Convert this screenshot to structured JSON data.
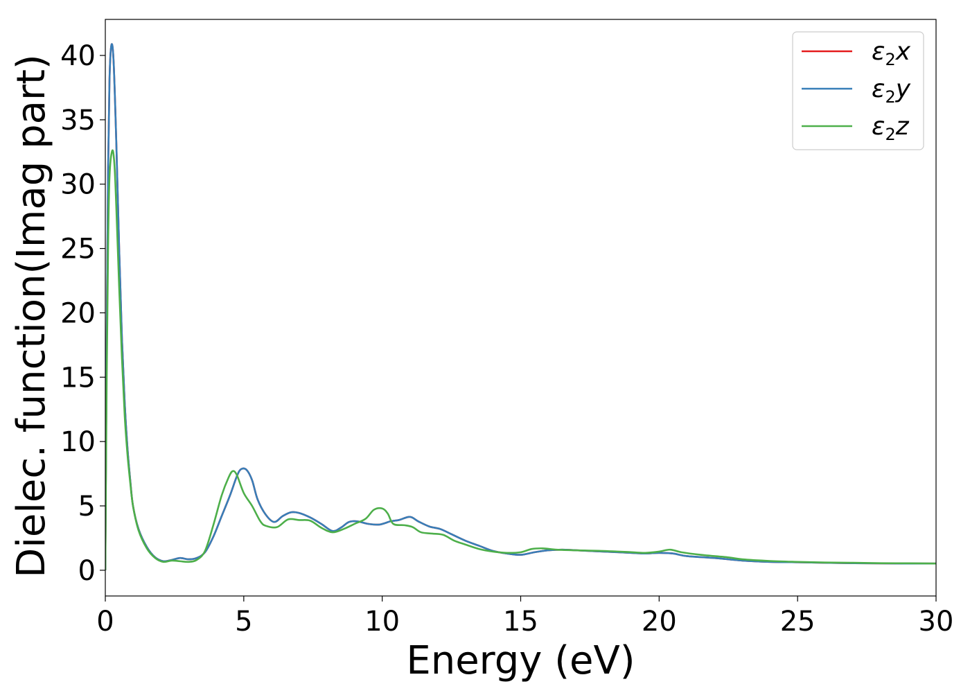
{
  "chart_data": {
    "type": "line",
    "xlabel": "Energy (eV)",
    "ylabel": "Dielec. function(Imag part)",
    "xlim": [
      0,
      30
    ],
    "ylim": [
      -2,
      42.8
    ],
    "xticks": [
      0,
      5,
      10,
      15,
      20,
      25,
      30
    ],
    "yticks": [
      0,
      5,
      10,
      15,
      20,
      25,
      30,
      35,
      40
    ],
    "grid": false,
    "legend_position": "top-right",
    "series": [
      {
        "name": "ε₂x",
        "legend_base": "ε",
        "legend_sub": "2",
        "legend_var": "x",
        "color": "#e41a1c",
        "points": [
          [
            0,
            0
          ],
          [
            0.05,
            18
          ],
          [
            0.1,
            31
          ],
          [
            0.15,
            38
          ],
          [
            0.22,
            40.8
          ],
          [
            0.3,
            39.5
          ],
          [
            0.4,
            33
          ],
          [
            0.5,
            25
          ],
          [
            0.6,
            18
          ],
          [
            0.7,
            13
          ],
          [
            0.8,
            9.5
          ],
          [
            0.9,
            7
          ],
          [
            1.0,
            5
          ],
          [
            1.2,
            3.2
          ],
          [
            1.5,
            1.8
          ],
          [
            1.8,
            1.0
          ],
          [
            2.1,
            0.7
          ],
          [
            2.4,
            0.8
          ],
          [
            2.7,
            0.95
          ],
          [
            3.0,
            0.85
          ],
          [
            3.3,
            0.95
          ],
          [
            3.6,
            1.4
          ],
          [
            3.9,
            2.6
          ],
          [
            4.2,
            4.2
          ],
          [
            4.5,
            5.8
          ],
          [
            4.75,
            7.3
          ],
          [
            4.9,
            7.85
          ],
          [
            5.1,
            7.8
          ],
          [
            5.3,
            7.0
          ],
          [
            5.5,
            5.5
          ],
          [
            5.8,
            4.3
          ],
          [
            6.1,
            3.75
          ],
          [
            6.4,
            4.2
          ],
          [
            6.7,
            4.5
          ],
          [
            7.0,
            4.45
          ],
          [
            7.4,
            4.1
          ],
          [
            7.8,
            3.6
          ],
          [
            8.2,
            3.05
          ],
          [
            8.5,
            3.3
          ],
          [
            8.8,
            3.75
          ],
          [
            9.1,
            3.8
          ],
          [
            9.5,
            3.6
          ],
          [
            9.9,
            3.55
          ],
          [
            10.3,
            3.8
          ],
          [
            10.6,
            3.9
          ],
          [
            11.0,
            4.15
          ],
          [
            11.3,
            3.8
          ],
          [
            11.7,
            3.4
          ],
          [
            12.1,
            3.2
          ],
          [
            12.5,
            2.8
          ],
          [
            13.0,
            2.3
          ],
          [
            13.5,
            1.9
          ],
          [
            14.0,
            1.5
          ],
          [
            14.5,
            1.3
          ],
          [
            15.0,
            1.2
          ],
          [
            15.5,
            1.4
          ],
          [
            16.0,
            1.55
          ],
          [
            16.5,
            1.6
          ],
          [
            17.0,
            1.55
          ],
          [
            18.0,
            1.45
          ],
          [
            19.0,
            1.35
          ],
          [
            19.5,
            1.3
          ],
          [
            20.0,
            1.35
          ],
          [
            20.5,
            1.3
          ],
          [
            21.0,
            1.1
          ],
          [
            22.0,
            0.95
          ],
          [
            23.0,
            0.75
          ],
          [
            24.0,
            0.65
          ],
          [
            25.0,
            0.62
          ],
          [
            26.0,
            0.58
          ],
          [
            27.0,
            0.55
          ],
          [
            28.0,
            0.53
          ],
          [
            29.0,
            0.52
          ],
          [
            30.0,
            0.52
          ]
        ]
      },
      {
        "name": "ε₂y",
        "legend_base": "ε",
        "legend_sub": "2",
        "legend_var": "y",
        "color": "#377eb8",
        "points": [
          [
            0,
            0
          ],
          [
            0.05,
            18
          ],
          [
            0.1,
            31
          ],
          [
            0.15,
            38
          ],
          [
            0.22,
            40.8
          ],
          [
            0.3,
            39.5
          ],
          [
            0.4,
            33
          ],
          [
            0.5,
            25
          ],
          [
            0.6,
            18
          ],
          [
            0.7,
            13
          ],
          [
            0.8,
            9.5
          ],
          [
            0.9,
            7
          ],
          [
            1.0,
            5
          ],
          [
            1.2,
            3.2
          ],
          [
            1.5,
            1.8
          ],
          [
            1.8,
            1.0
          ],
          [
            2.1,
            0.7
          ],
          [
            2.4,
            0.8
          ],
          [
            2.7,
            0.95
          ],
          [
            3.0,
            0.85
          ],
          [
            3.3,
            0.95
          ],
          [
            3.6,
            1.4
          ],
          [
            3.9,
            2.6
          ],
          [
            4.2,
            4.2
          ],
          [
            4.5,
            5.8
          ],
          [
            4.75,
            7.3
          ],
          [
            4.9,
            7.85
          ],
          [
            5.1,
            7.8
          ],
          [
            5.3,
            7.0
          ],
          [
            5.5,
            5.5
          ],
          [
            5.8,
            4.3
          ],
          [
            6.1,
            3.75
          ],
          [
            6.4,
            4.2
          ],
          [
            6.7,
            4.5
          ],
          [
            7.0,
            4.45
          ],
          [
            7.4,
            4.1
          ],
          [
            7.8,
            3.6
          ],
          [
            8.2,
            3.05
          ],
          [
            8.5,
            3.3
          ],
          [
            8.8,
            3.75
          ],
          [
            9.1,
            3.8
          ],
          [
            9.5,
            3.6
          ],
          [
            9.9,
            3.55
          ],
          [
            10.3,
            3.8
          ],
          [
            10.6,
            3.9
          ],
          [
            11.0,
            4.15
          ],
          [
            11.3,
            3.8
          ],
          [
            11.7,
            3.4
          ],
          [
            12.1,
            3.2
          ],
          [
            12.5,
            2.8
          ],
          [
            13.0,
            2.3
          ],
          [
            13.5,
            1.9
          ],
          [
            14.0,
            1.5
          ],
          [
            14.5,
            1.3
          ],
          [
            15.0,
            1.2
          ],
          [
            15.5,
            1.4
          ],
          [
            16.0,
            1.55
          ],
          [
            16.5,
            1.6
          ],
          [
            17.0,
            1.55
          ],
          [
            18.0,
            1.45
          ],
          [
            19.0,
            1.35
          ],
          [
            19.5,
            1.3
          ],
          [
            20.0,
            1.35
          ],
          [
            20.5,
            1.3
          ],
          [
            21.0,
            1.1
          ],
          [
            22.0,
            0.95
          ],
          [
            23.0,
            0.75
          ],
          [
            24.0,
            0.65
          ],
          [
            25.0,
            0.62
          ],
          [
            26.0,
            0.58
          ],
          [
            27.0,
            0.55
          ],
          [
            28.0,
            0.53
          ],
          [
            29.0,
            0.52
          ],
          [
            30.0,
            0.52
          ]
        ]
      },
      {
        "name": "ε₂z",
        "legend_base": "ε",
        "legend_sub": "2",
        "legend_var": "z",
        "color": "#4daf4a",
        "points": [
          [
            0,
            0
          ],
          [
            0.05,
            15
          ],
          [
            0.1,
            25
          ],
          [
            0.15,
            30.5
          ],
          [
            0.25,
            32.6
          ],
          [
            0.33,
            31.5
          ],
          [
            0.4,
            28
          ],
          [
            0.5,
            22
          ],
          [
            0.6,
            16.5
          ],
          [
            0.7,
            12
          ],
          [
            0.8,
            9
          ],
          [
            0.9,
            6.8
          ],
          [
            1.0,
            5
          ],
          [
            1.2,
            3.1
          ],
          [
            1.5,
            1.7
          ],
          [
            1.8,
            0.95
          ],
          [
            2.1,
            0.65
          ],
          [
            2.4,
            0.75
          ],
          [
            2.7,
            0.7
          ],
          [
            3.0,
            0.65
          ],
          [
            3.3,
            0.8
          ],
          [
            3.6,
            1.5
          ],
          [
            3.9,
            3.5
          ],
          [
            4.2,
            5.8
          ],
          [
            4.45,
            7.2
          ],
          [
            4.6,
            7.7
          ],
          [
            4.75,
            7.4
          ],
          [
            5.0,
            6.0
          ],
          [
            5.3,
            5.0
          ],
          [
            5.6,
            3.8
          ],
          [
            5.8,
            3.45
          ],
          [
            6.2,
            3.35
          ],
          [
            6.6,
            3.95
          ],
          [
            7.0,
            3.9
          ],
          [
            7.4,
            3.85
          ],
          [
            7.8,
            3.3
          ],
          [
            8.2,
            2.95
          ],
          [
            8.6,
            3.2
          ],
          [
            9.0,
            3.6
          ],
          [
            9.4,
            4.0
          ],
          [
            9.7,
            4.7
          ],
          [
            10.0,
            4.8
          ],
          [
            10.2,
            4.4
          ],
          [
            10.4,
            3.6
          ],
          [
            10.8,
            3.5
          ],
          [
            11.1,
            3.35
          ],
          [
            11.4,
            2.95
          ],
          [
            11.8,
            2.85
          ],
          [
            12.2,
            2.75
          ],
          [
            12.6,
            2.3
          ],
          [
            13.0,
            2.0
          ],
          [
            13.5,
            1.65
          ],
          [
            14.0,
            1.45
          ],
          [
            14.5,
            1.35
          ],
          [
            15.0,
            1.4
          ],
          [
            15.4,
            1.65
          ],
          [
            15.8,
            1.7
          ],
          [
            16.3,
            1.6
          ],
          [
            17.0,
            1.55
          ],
          [
            18.0,
            1.5
          ],
          [
            19.0,
            1.4
          ],
          [
            19.5,
            1.35
          ],
          [
            20.0,
            1.45
          ],
          [
            20.4,
            1.6
          ],
          [
            20.8,
            1.4
          ],
          [
            21.5,
            1.2
          ],
          [
            22.5,
            1.0
          ],
          [
            23.0,
            0.85
          ],
          [
            24.0,
            0.72
          ],
          [
            25.0,
            0.65
          ],
          [
            26.0,
            0.6
          ],
          [
            27.0,
            0.58
          ],
          [
            28.0,
            0.55
          ],
          [
            29.0,
            0.54
          ],
          [
            30.0,
            0.52
          ]
        ]
      }
    ]
  }
}
